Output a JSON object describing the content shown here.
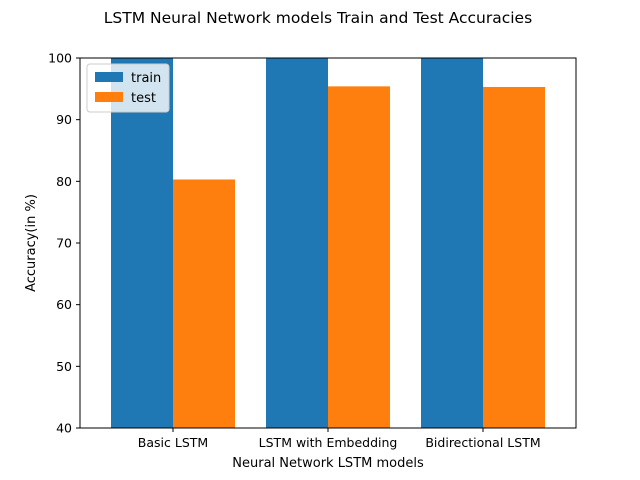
{
  "chart_data": {
    "type": "bar",
    "title": "LSTM Neural Network models Train and Test Accuracies",
    "xlabel": "Neural Network LSTM models",
    "ylabel": "Accuracy(in %)",
    "categories": [
      "Basic LSTM",
      "LSTM with Embedding",
      "Bidirectional LSTM"
    ],
    "series": [
      {
        "name": "train",
        "color": "#1f77b4",
        "values": [
          100,
          100,
          100
        ]
      },
      {
        "name": "test",
        "color": "#ff7f0e",
        "values": [
          80.3,
          95.4,
          95.3
        ]
      }
    ],
    "ylim": [
      40,
      100
    ],
    "yticks": [
      40,
      50,
      60,
      70,
      80,
      90,
      100
    ],
    "grid": false,
    "legend_position": "top-left"
  }
}
